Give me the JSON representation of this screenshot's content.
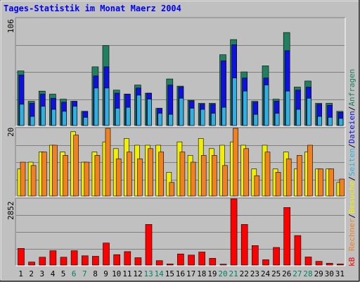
{
  "chart_data": {
    "type": "bar",
    "title": "Tages-Statistik im Monat Maerz 2004",
    "x": [
      "1",
      "2",
      "3",
      "4",
      "5",
      "6",
      "7",
      "8",
      "9",
      "10",
      "11",
      "12",
      "13",
      "14",
      "15",
      "16",
      "17",
      "18",
      "19",
      "20",
      "21",
      "22",
      "23",
      "24",
      "25",
      "26",
      "27",
      "28",
      "29",
      "30",
      "31"
    ],
    "weekend_days": [
      "6",
      "7",
      "13",
      "14",
      "20",
      "21",
      "27",
      "28"
    ],
    "panels": [
      {
        "name": "traffic",
        "ymax_label": "106",
        "ymax": 106,
        "series": [
          {
            "name": "Anfragen",
            "color": "#208060",
            "values": [
              54,
              24,
              34,
              31,
              26,
              24,
              14,
              58,
              79,
              35,
              31,
              40,
              32,
              17,
              46,
              39,
              25,
              22,
              22,
              70,
              85,
              53,
              24,
              59,
              26,
              92,
              38,
              44,
              22,
              22,
              14
            ]
          },
          {
            "name": "Dateien",
            "color": "#1010e0",
            "values": [
              50,
              22,
              31,
              27,
              23,
              24,
              14,
              49,
              58,
              32,
              31,
              37,
              32,
              17,
              40,
              38,
              24,
              21,
              21,
              64,
              80,
              47,
              23,
              47,
              24,
              74,
              35,
              38,
              21,
              20,
              13
            ]
          },
          {
            "name": "Seiten",
            "color": "#30b0e0",
            "values": [
              21,
              9,
              19,
              16,
              14,
              19,
              8,
              37,
              37,
              17,
              18,
              30,
              26,
              12,
              11,
              27,
              17,
              16,
              12,
              18,
              47,
              34,
              11,
              40,
              12,
              34,
              16,
              27,
              9,
              8,
              7
            ]
          }
        ]
      },
      {
        "name": "visits",
        "ymax_label": "20",
        "ymax": 20,
        "series": [
          {
            "name": "Besuche",
            "color": "#f0f000",
            "values": [
              8,
              10,
              13,
              15,
              13,
              19,
              10,
              13,
              16,
              14,
              17,
              15,
              15,
              15,
              7,
              16,
              12,
              17,
              14,
              15,
              16,
              15,
              8,
              15,
              8,
              13,
              8,
              13,
              8,
              8,
              4
            ]
          },
          {
            "name": "Rechner",
            "color": "#f08020",
            "values": [
              10,
              9,
              13,
              15,
              12,
              18,
              10,
              12,
              20,
              11,
              13,
              11,
              14,
              13,
              4,
              13,
              10,
              12,
              12,
              9,
              20,
              14,
              6,
              13,
              7,
              11,
              12,
              15,
              8,
              8,
              5
            ]
          }
        ]
      },
      {
        "name": "kb",
        "ymax_label": "2852",
        "ymax": 2852,
        "series": [
          {
            "name": "kB",
            "color": "#ff0000",
            "values": [
              720,
              130,
              340,
              620,
              340,
              620,
              400,
              380,
              950,
              450,
              580,
              320,
              1750,
              190,
              50,
              480,
              430,
              560,
              290,
              40,
              2852,
              1750,
              840,
              230,
              760,
              2480,
              1270,
              350,
              160,
              80,
              50
            ]
          }
        ]
      }
    ],
    "legend_right": [
      "Anfragen",
      "/",
      "Dateien",
      "/",
      "Seiten",
      "/",
      "Besuche",
      "/",
      "Rechner",
      "/",
      "kB"
    ]
  },
  "colors": {
    "title": "#0000ff",
    "weekend_label": "#00805f",
    "panel_bg": "#c0c0c0",
    "grid": "#808080"
  }
}
